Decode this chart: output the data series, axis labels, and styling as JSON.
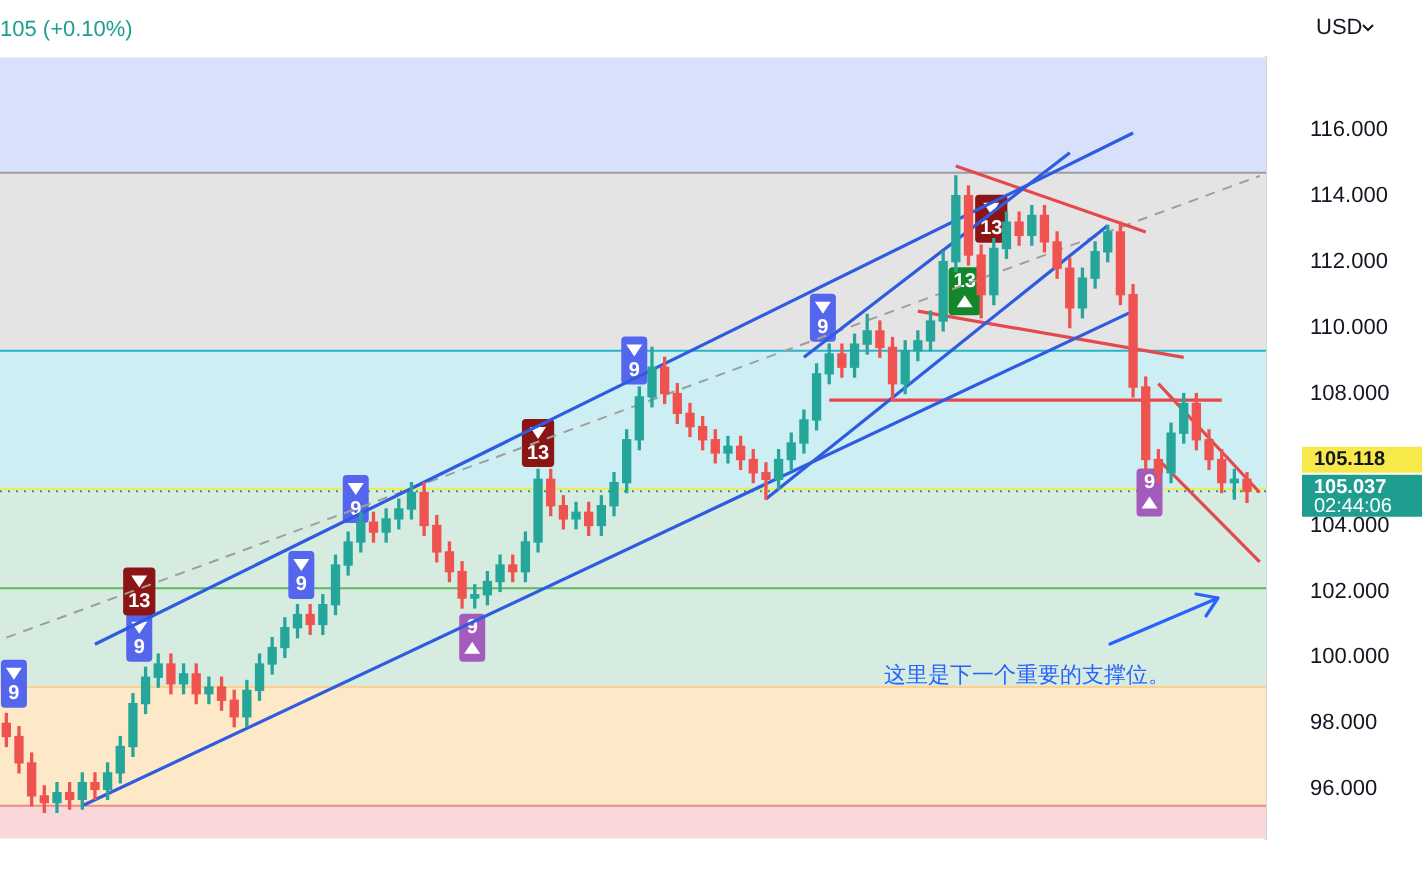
{
  "chart_data": {
    "type": "candlestick",
    "ylabel": "USD",
    "tick_labels": "y",
    "categories": [
      null,
      null,
      null,
      null,
      null,
      null,
      null,
      null,
      null,
      null,
      null,
      null,
      null,
      null,
      null,
      null,
      null,
      null,
      null,
      null,
      null,
      null,
      null,
      null,
      null,
      null,
      null,
      null,
      null,
      null,
      null,
      null,
      null,
      null,
      null,
      null,
      null,
      null,
      null,
      null,
      null,
      null,
      null,
      null,
      null,
      null,
      null,
      null,
      null,
      null,
      null,
      null,
      null,
      null,
      null,
      null,
      null,
      null,
      null,
      null,
      null,
      null,
      null,
      null,
      null,
      null,
      null,
      null,
      null,
      null,
      null,
      null,
      null,
      null,
      null,
      null,
      null,
      null,
      null,
      null,
      null,
      null,
      null,
      null,
      null,
      null,
      null,
      null,
      null,
      null,
      null,
      null,
      null,
      null,
      null,
      null,
      null,
      null,
      null,
      null
    ],
    "ohlc": [
      [
        98.0,
        98.3,
        97.3,
        97.6
      ],
      [
        97.6,
        97.9,
        96.5,
        96.8
      ],
      [
        96.8,
        97.1,
        95.5,
        95.8
      ],
      [
        95.8,
        96.1,
        95.3,
        95.6
      ],
      [
        95.6,
        96.2,
        95.3,
        95.9
      ],
      [
        95.9,
        96.2,
        95.4,
        95.7
      ],
      [
        95.7,
        96.5,
        95.4,
        96.2
      ],
      [
        96.2,
        96.5,
        95.7,
        96.0
      ],
      [
        96.0,
        96.8,
        95.7,
        96.5
      ],
      [
        96.5,
        97.6,
        96.2,
        97.3
      ],
      [
        97.3,
        98.9,
        97.0,
        98.6
      ],
      [
        98.6,
        99.7,
        98.3,
        99.4
      ],
      [
        99.4,
        100.1,
        99.1,
        99.8
      ],
      [
        99.8,
        100.1,
        98.9,
        99.2
      ],
      [
        99.2,
        99.8,
        98.9,
        99.5
      ],
      [
        99.5,
        99.8,
        98.6,
        98.9
      ],
      [
        98.9,
        99.4,
        98.6,
        99.1
      ],
      [
        99.1,
        99.4,
        98.4,
        98.7
      ],
      [
        98.7,
        99.0,
        97.9,
        98.2
      ],
      [
        98.2,
        99.3,
        97.9,
        99.0
      ],
      [
        99.0,
        100.1,
        98.7,
        99.8
      ],
      [
        99.8,
        100.6,
        99.5,
        100.3
      ],
      [
        100.3,
        101.2,
        100.0,
        100.9
      ],
      [
        100.9,
        101.6,
        100.6,
        101.3
      ],
      [
        101.3,
        101.6,
        100.7,
        101.0
      ],
      [
        101.0,
        101.9,
        100.7,
        101.6
      ],
      [
        101.6,
        103.1,
        101.3,
        102.8
      ],
      [
        102.8,
        103.8,
        102.5,
        103.5
      ],
      [
        103.5,
        104.4,
        103.2,
        104.1
      ],
      [
        104.1,
        104.4,
        103.5,
        103.8
      ],
      [
        103.8,
        104.5,
        103.5,
        104.2
      ],
      [
        104.2,
        104.8,
        103.9,
        104.5
      ],
      [
        104.5,
        105.3,
        104.2,
        105.0
      ],
      [
        105.0,
        105.3,
        103.7,
        104.0
      ],
      [
        104.0,
        104.3,
        102.9,
        103.2
      ],
      [
        103.2,
        103.5,
        102.3,
        102.6
      ],
      [
        102.6,
        102.9,
        101.5,
        101.8
      ],
      [
        101.8,
        102.2,
        101.5,
        101.9
      ],
      [
        101.9,
        102.6,
        101.6,
        102.3
      ],
      [
        102.3,
        103.1,
        102.0,
        102.8
      ],
      [
        102.8,
        103.1,
        102.3,
        102.6
      ],
      [
        102.6,
        103.8,
        102.3,
        103.5
      ],
      [
        103.5,
        105.7,
        103.2,
        105.4
      ],
      [
        105.4,
        105.7,
        104.3,
        104.6
      ],
      [
        104.6,
        104.9,
        103.9,
        104.2
      ],
      [
        104.2,
        104.7,
        103.9,
        104.4
      ],
      [
        104.4,
        104.7,
        103.7,
        104.0
      ],
      [
        104.0,
        104.9,
        103.7,
        104.6
      ],
      [
        104.6,
        105.6,
        104.3,
        105.3
      ],
      [
        105.3,
        106.9,
        105.0,
        106.6
      ],
      [
        106.6,
        108.2,
        106.3,
        107.9
      ],
      [
        107.9,
        109.4,
        107.6,
        108.8
      ],
      [
        108.8,
        109.1,
        107.7,
        108.0
      ],
      [
        108.0,
        108.3,
        107.1,
        107.4
      ],
      [
        107.4,
        107.7,
        106.7,
        107.0
      ],
      [
        107.0,
        107.3,
        106.3,
        106.6
      ],
      [
        106.6,
        106.9,
        105.9,
        106.2
      ],
      [
        106.2,
        106.7,
        105.9,
        106.4
      ],
      [
        106.4,
        106.7,
        105.7,
        106.0
      ],
      [
        106.0,
        106.3,
        105.3,
        105.6
      ],
      [
        105.6,
        105.9,
        104.8,
        105.4
      ],
      [
        105.4,
        106.3,
        105.1,
        106.0
      ],
      [
        106.0,
        106.8,
        105.7,
        106.5
      ],
      [
        106.5,
        107.5,
        106.2,
        107.2
      ],
      [
        107.2,
        108.9,
        106.9,
        108.6
      ],
      [
        108.6,
        109.5,
        108.3,
        109.2
      ],
      [
        109.2,
        109.5,
        108.5,
        108.8
      ],
      [
        108.8,
        109.8,
        108.5,
        109.5
      ],
      [
        109.5,
        110.4,
        109.2,
        109.9
      ],
      [
        109.9,
        110.2,
        109.1,
        109.4
      ],
      [
        109.4,
        109.7,
        107.8,
        108.3
      ],
      [
        108.3,
        109.6,
        108.0,
        109.3
      ],
      [
        109.3,
        109.9,
        109.0,
        109.6
      ],
      [
        109.6,
        110.5,
        109.3,
        110.2
      ],
      [
        110.2,
        112.3,
        109.9,
        112.0
      ],
      [
        112.0,
        114.6,
        111.7,
        114.0
      ],
      [
        114.0,
        114.3,
        111.9,
        112.2
      ],
      [
        112.2,
        112.5,
        110.3,
        111.0
      ],
      [
        111.0,
        112.7,
        110.7,
        112.4
      ],
      [
        112.4,
        113.5,
        112.1,
        113.2
      ],
      [
        113.2,
        113.5,
        112.5,
        112.8
      ],
      [
        112.8,
        113.7,
        112.5,
        113.4
      ],
      [
        113.4,
        113.7,
        112.3,
        112.6
      ],
      [
        112.6,
        112.9,
        111.5,
        111.8
      ],
      [
        111.8,
        112.1,
        110.0,
        110.6
      ],
      [
        110.6,
        111.8,
        110.3,
        111.5
      ],
      [
        111.5,
        112.6,
        111.2,
        112.3
      ],
      [
        112.3,
        113.1,
        112.0,
        112.9
      ],
      [
        112.9,
        113.2,
        110.7,
        111.0
      ],
      [
        111.0,
        111.3,
        107.9,
        108.2
      ],
      [
        108.2,
        108.5,
        105.7,
        106.0
      ],
      [
        106.0,
        106.3,
        105.3,
        105.6
      ],
      [
        105.6,
        107.1,
        105.3,
        106.8
      ],
      [
        106.8,
        108.0,
        106.5,
        107.7
      ],
      [
        107.7,
        108.0,
        106.3,
        106.6
      ],
      [
        106.6,
        106.9,
        105.7,
        106.0
      ],
      [
        106.0,
        106.3,
        105.0,
        105.3
      ],
      [
        105.3,
        105.7,
        104.8,
        105.4
      ],
      [
        105.4,
        105.6,
        104.7,
        105.037
      ],
      null
    ],
    "series": [
      {
        "type": "line",
        "color": "#2e5be0",
        "values": [
          null,
          null,
          null,
          null,
          null,
          null,
          null,
          100.4,
          null,
          null,
          null,
          null,
          null,
          null,
          null,
          null,
          null,
          null,
          null,
          null,
          null,
          null,
          null,
          null,
          null,
          null,
          null,
          null,
          null,
          null,
          null,
          null,
          null,
          null,
          null,
          null,
          null,
          null,
          null,
          null,
          null,
          null,
          null,
          null,
          null,
          null,
          null,
          null,
          null,
          null,
          null,
          null,
          null,
          null,
          null,
          null,
          null,
          null,
          null,
          null,
          null,
          null,
          null,
          null,
          null,
          null,
          null,
          null,
          null,
          null,
          null,
          null,
          null,
          null,
          null,
          null,
          null,
          null,
          null,
          null,
          null,
          null,
          null,
          null,
          null,
          null,
          null,
          null,
          null,
          115.9,
          null,
          null,
          null,
          null,
          null,
          null,
          null,
          null,
          null,
          null
        ]
      },
      {
        "type": "line",
        "color": "#2e5be0",
        "values": [
          null,
          null,
          null,
          null,
          null,
          null,
          95.5,
          null,
          null,
          null,
          null,
          null,
          null,
          null,
          null,
          null,
          null,
          null,
          null,
          null,
          null,
          null,
          null,
          null,
          null,
          null,
          null,
          null,
          null,
          null,
          null,
          null,
          null,
          null,
          null,
          null,
          null,
          null,
          null,
          null,
          null,
          null,
          null,
          null,
          null,
          null,
          null,
          null,
          null,
          null,
          null,
          null,
          null,
          null,
          null,
          null,
          null,
          null,
          null,
          null,
          null,
          null,
          null,
          null,
          null,
          null,
          null,
          null,
          null,
          null,
          null,
          null,
          null,
          null,
          null,
          null,
          null,
          null,
          null,
          null,
          null,
          null,
          null,
          null,
          null,
          null,
          null,
          null,
          null,
          110.5,
          null,
          null,
          null,
          null,
          null,
          null,
          null,
          null,
          null,
          null
        ]
      },
      {
        "type": "line",
        "color": "#2e5be0",
        "values": [
          null,
          null,
          null,
          null,
          null,
          null,
          null,
          null,
          null,
          null,
          null,
          null,
          null,
          null,
          null,
          null,
          null,
          null,
          null,
          null,
          null,
          null,
          null,
          null,
          null,
          null,
          null,
          null,
          null,
          null,
          null,
          null,
          null,
          null,
          null,
          null,
          null,
          null,
          null,
          null,
          null,
          null,
          null,
          null,
          null,
          null,
          null,
          null,
          null,
          null,
          null,
          null,
          null,
          null,
          null,
          null,
          null,
          null,
          null,
          null,
          104.8,
          null,
          null,
          null,
          null,
          null,
          null,
          null,
          null,
          null,
          null,
          null,
          null,
          null,
          null,
          null,
          null,
          null,
          null,
          null,
          null,
          null,
          null,
          null,
          null,
          null,
          null,
          113.1,
          null,
          null,
          null,
          null,
          null,
          null,
          null,
          null,
          null,
          null,
          null,
          null
        ]
      },
      {
        "type": "line",
        "color": "#2e5be0",
        "values": [
          null,
          null,
          null,
          null,
          null,
          null,
          null,
          null,
          null,
          null,
          null,
          null,
          null,
          null,
          null,
          null,
          null,
          null,
          null,
          null,
          null,
          null,
          null,
          null,
          null,
          null,
          null,
          null,
          null,
          null,
          null,
          null,
          null,
          null,
          null,
          null,
          null,
          null,
          null,
          null,
          null,
          null,
          null,
          null,
          null,
          null,
          null,
          null,
          null,
          null,
          null,
          null,
          null,
          null,
          null,
          null,
          null,
          null,
          null,
          null,
          null,
          null,
          null,
          109.1,
          null,
          null,
          null,
          null,
          null,
          null,
          null,
          null,
          null,
          null,
          null,
          null,
          null,
          null,
          null,
          null,
          null,
          null,
          null,
          null,
          115.3,
          null,
          null,
          null,
          null,
          null,
          null,
          null,
          null,
          null,
          null,
          null,
          null,
          null,
          null,
          null
        ]
      },
      {
        "type": "line",
        "color": "#e5484d",
        "values": [
          null,
          null,
          null,
          null,
          null,
          null,
          null,
          null,
          null,
          null,
          null,
          null,
          null,
          null,
          null,
          null,
          null,
          null,
          null,
          null,
          null,
          null,
          null,
          null,
          null,
          null,
          null,
          null,
          null,
          null,
          null,
          null,
          null,
          null,
          null,
          null,
          null,
          null,
          null,
          null,
          null,
          null,
          null,
          null,
          null,
          null,
          null,
          null,
          null,
          null,
          null,
          null,
          null,
          null,
          null,
          null,
          null,
          null,
          null,
          null,
          null,
          null,
          null,
          null,
          null,
          null,
          null,
          null,
          null,
          null,
          null,
          null,
          null,
          null,
          null,
          114.9,
          null,
          null,
          null,
          null,
          null,
          null,
          null,
          null,
          null,
          null,
          null,
          null,
          null,
          null,
          112.9,
          null,
          null,
          null,
          null,
          null,
          null,
          null,
          null,
          null
        ]
      },
      {
        "type": "line",
        "color": "#e5484d",
        "values": [
          null,
          null,
          null,
          null,
          null,
          null,
          null,
          null,
          null,
          null,
          null,
          null,
          null,
          null,
          null,
          null,
          null,
          null,
          null,
          null,
          null,
          null,
          null,
          null,
          null,
          null,
          null,
          null,
          null,
          null,
          null,
          null,
          null,
          null,
          null,
          null,
          null,
          null,
          null,
          null,
          null,
          null,
          null,
          null,
          null,
          null,
          null,
          null,
          null,
          null,
          null,
          null,
          null,
          null,
          null,
          null,
          null,
          null,
          null,
          null,
          null,
          null,
          null,
          null,
          null,
          null,
          null,
          null,
          null,
          null,
          null,
          null,
          110.5,
          null,
          null,
          null,
          null,
          null,
          null,
          null,
          null,
          null,
          null,
          null,
          null,
          null,
          null,
          null,
          null,
          null,
          null,
          null,
          null,
          109.1,
          null,
          null,
          null,
          null,
          null,
          null
        ]
      },
      {
        "type": "line",
        "color": "#e5484d",
        "values": [
          null,
          null,
          null,
          null,
          null,
          null,
          null,
          null,
          null,
          null,
          null,
          null,
          null,
          null,
          null,
          null,
          null,
          null,
          null,
          null,
          null,
          null,
          null,
          null,
          null,
          null,
          null,
          null,
          null,
          null,
          null,
          null,
          null,
          null,
          null,
          null,
          null,
          null,
          null,
          null,
          null,
          null,
          null,
          null,
          null,
          null,
          null,
          null,
          null,
          null,
          null,
          null,
          null,
          null,
          null,
          null,
          null,
          null,
          null,
          null,
          null,
          null,
          null,
          null,
          null,
          107.8,
          null,
          null,
          null,
          null,
          null,
          null,
          null,
          null,
          null,
          null,
          null,
          null,
          null,
          null,
          null,
          null,
          null,
          null,
          null,
          null,
          null,
          null,
          null,
          null,
          null,
          null,
          null,
          null,
          null,
          null,
          107.8,
          null,
          null,
          null
        ]
      },
      {
        "type": "line",
        "color": "#e5484d",
        "values": [
          null,
          null,
          null,
          null,
          null,
          null,
          null,
          null,
          null,
          null,
          null,
          null,
          null,
          null,
          null,
          null,
          null,
          null,
          null,
          null,
          null,
          null,
          null,
          null,
          null,
          null,
          null,
          null,
          null,
          null,
          null,
          null,
          null,
          null,
          null,
          null,
          null,
          null,
          null,
          null,
          null,
          null,
          null,
          null,
          null,
          null,
          null,
          null,
          null,
          null,
          null,
          null,
          null,
          null,
          null,
          null,
          null,
          null,
          null,
          null,
          null,
          null,
          null,
          null,
          null,
          null,
          null,
          null,
          null,
          null,
          null,
          null,
          null,
          null,
          null,
          null,
          null,
          null,
          null,
          null,
          null,
          null,
          null,
          null,
          null,
          null,
          null,
          null,
          null,
          null,
          null,
          108.3,
          null,
          null,
          null,
          null,
          null,
          null,
          null,
          105.0
        ]
      },
      {
        "type": "line",
        "color": "#e5484d",
        "values": [
          null,
          null,
          null,
          null,
          null,
          null,
          null,
          null,
          null,
          null,
          null,
          null,
          null,
          null,
          null,
          null,
          null,
          null,
          null,
          null,
          null,
          null,
          null,
          null,
          null,
          null,
          null,
          null,
          null,
          null,
          null,
          null,
          null,
          null,
          null,
          null,
          null,
          null,
          null,
          null,
          null,
          null,
          null,
          null,
          null,
          null,
          null,
          null,
          null,
          null,
          null,
          null,
          null,
          null,
          null,
          null,
          null,
          null,
          null,
          null,
          null,
          null,
          null,
          null,
          null,
          null,
          null,
          null,
          null,
          null,
          null,
          null,
          null,
          null,
          null,
          null,
          null,
          null,
          null,
          null,
          null,
          null,
          null,
          null,
          null,
          null,
          null,
          null,
          null,
          null,
          null,
          106.0,
          null,
          null,
          null,
          null,
          null,
          null,
          null,
          102.9
        ]
      },
      {
        "type": "line",
        "color": "#9e9e9e",
        "line_style": "dashed",
        "values": [
          100.6,
          null,
          null,
          null,
          null,
          null,
          null,
          null,
          null,
          null,
          null,
          null,
          null,
          null,
          null,
          null,
          null,
          null,
          null,
          null,
          null,
          null,
          null,
          null,
          null,
          null,
          null,
          null,
          null,
          null,
          null,
          null,
          null,
          null,
          null,
          null,
          null,
          null,
          null,
          null,
          null,
          null,
          null,
          null,
          null,
          null,
          null,
          null,
          null,
          null,
          null,
          null,
          null,
          null,
          null,
          null,
          null,
          null,
          null,
          null,
          null,
          null,
          null,
          null,
          null,
          null,
          null,
          null,
          null,
          null,
          null,
          null,
          null,
          null,
          null,
          null,
          null,
          null,
          null,
          null,
          null,
          null,
          null,
          null,
          null,
          null,
          null,
          null,
          null,
          null,
          null,
          null,
          null,
          null,
          null,
          null,
          null,
          null,
          null,
          114.6
        ]
      }
    ],
    "ylim": [
      94.5,
      118.2
    ],
    "yticks": [
      {
        "value": 96,
        "label": "96.000"
      },
      {
        "value": 98,
        "label": "98.000"
      },
      {
        "value": 100,
        "label": "100.000"
      },
      {
        "value": 102,
        "label": "102.000"
      },
      {
        "value": 104,
        "label": "104.000"
      },
      {
        "value": 108,
        "label": "108.000"
      },
      {
        "value": 110,
        "label": "110.000"
      },
      {
        "value": 112,
        "label": "112.000"
      },
      {
        "value": 114,
        "label": "114.000"
      },
      {
        "value": 116,
        "label": "116.000"
      }
    ],
    "bands": [
      {
        "axis": "y",
        "from": 114.7,
        "to": 118.2,
        "color": "#d7e1fb"
      },
      {
        "axis": "y",
        "from": 109.3,
        "to": 114.7,
        "color": "#e4e4e4"
      },
      {
        "axis": "y",
        "from": 105.118,
        "to": 109.3,
        "color": "#cdeff3"
      },
      {
        "axis": "y",
        "from": 99.1,
        "to": 105.118,
        "color": "#d6ece0"
      },
      {
        "axis": "y",
        "from": 95.5,
        "to": 99.1,
        "color": "#fde8c8"
      },
      {
        "axis": "y",
        "from": 94.5,
        "to": 95.5,
        "color": "#fad7da"
      }
    ],
    "ref_lines": [
      {
        "axis": "y",
        "value": 114.7,
        "color": "#9e9e9e"
      },
      {
        "axis": "y",
        "value": 109.3,
        "color": "#26b5c9"
      },
      {
        "axis": "y",
        "value": 105.118,
        "label": "105.118",
        "color": "#f7e94a"
      },
      {
        "axis": "y",
        "value": 102.1,
        "color": "#5cb85c"
      },
      {
        "axis": "y",
        "value": 99.1,
        "color": "#ffd08a"
      },
      {
        "axis": "y",
        "value": 95.5,
        "color": "#ef8a8a"
      },
      {
        "axis": "y",
        "value": 105.037,
        "label": "105.037",
        "color": "#1f9e8f",
        "line_style": "dotted"
      }
    ],
    "annotations": [
      "105 (+0.10%)",
      "02:44:06",
      "这里是下一个重要的支撑位。",
      {
        "text": "9",
        "y": 99.2
      },
      {
        "text": "9",
        "y": 100.6
      },
      {
        "text": "13",
        "y": 102.0
      },
      {
        "text": "9",
        "y": 102.5
      },
      {
        "text": "9",
        "y": 104.8
      },
      {
        "text": "9",
        "y": 100.6
      },
      {
        "text": "13",
        "y": 106.5
      },
      {
        "text": "9",
        "y": 109.0
      },
      {
        "text": "9",
        "y": 110.3
      },
      {
        "text": "13",
        "y": 113.3
      },
      {
        "text": "13",
        "y": 111.1
      },
      {
        "text": "9",
        "y": 105.0
      }
    ]
  }
}
